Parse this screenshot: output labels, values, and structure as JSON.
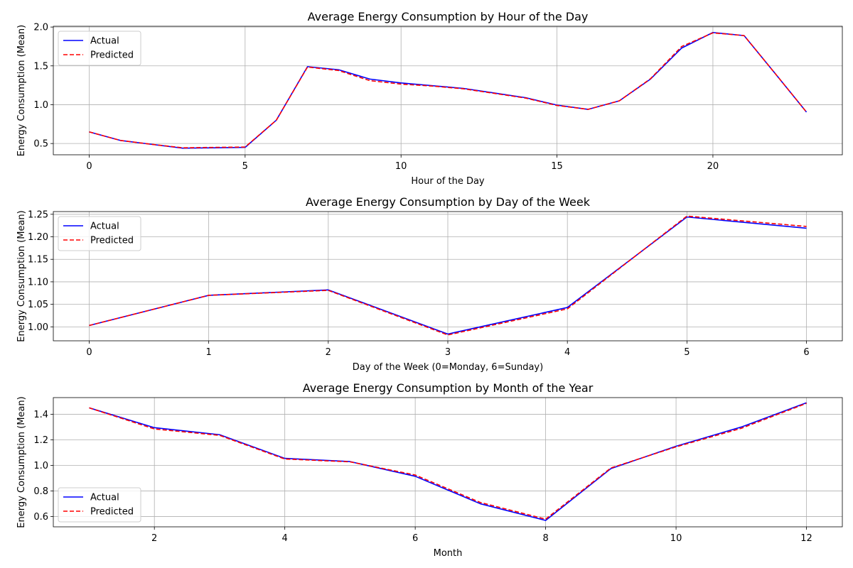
{
  "chart_data": [
    {
      "type": "line",
      "title": "Average Energy Consumption by Hour of the Day",
      "xlabel": "Hour of the Day",
      "ylabel": "Energy Consumption (Mean)",
      "xlim": [
        -1.15,
        24.15
      ],
      "ylim": [
        0.355,
        2.01
      ],
      "xticks": [
        0,
        5,
        10,
        15,
        20
      ],
      "xtick_labels": [
        "0",
        "5",
        "10",
        "15",
        "20"
      ],
      "yticks": [
        0.5,
        1.0,
        1.5,
        2.0
      ],
      "ytick_labels": [
        "0.5",
        "1.0",
        "1.5",
        "2.0"
      ],
      "grid": true,
      "legend_position": "upper-left",
      "x": [
        0,
        1,
        2,
        3,
        4,
        5,
        6,
        7,
        8,
        9,
        10,
        11,
        12,
        13,
        14,
        15,
        16,
        17,
        18,
        19,
        20,
        21,
        22,
        23
      ],
      "series": [
        {
          "name": "Actual",
          "color": "#0000ff",
          "style": "solid",
          "values": [
            0.65,
            0.54,
            0.49,
            0.44,
            0.445,
            0.45,
            0.8,
            1.49,
            1.45,
            1.33,
            1.28,
            1.245,
            1.21,
            1.15,
            1.09,
            0.995,
            0.94,
            1.05,
            1.33,
            1.73,
            1.93,
            1.89,
            1.4,
            0.905
          ]
        },
        {
          "name": "Predicted",
          "color": "#ff0000",
          "style": "dashed",
          "values": [
            0.65,
            0.54,
            0.49,
            0.445,
            0.45,
            0.455,
            0.8,
            1.485,
            1.44,
            1.31,
            1.265,
            1.24,
            1.205,
            1.145,
            1.085,
            0.99,
            0.94,
            1.05,
            1.335,
            1.75,
            1.925,
            1.89,
            1.4,
            0.905
          ]
        }
      ]
    },
    {
      "type": "line",
      "title": "Average Energy Consumption by Day of the Week",
      "xlabel": "Day of the Week (0=Monday, 6=Sunday)",
      "ylabel": "Energy Consumption (Mean)",
      "xlim": [
        -0.3,
        6.3
      ],
      "ylim": [
        0.969,
        1.256
      ],
      "xticks": [
        0,
        1,
        2,
        3,
        4,
        5,
        6
      ],
      "xtick_labels": [
        "0",
        "1",
        "2",
        "3",
        "4",
        "5",
        "6"
      ],
      "yticks": [
        1.0,
        1.05,
        1.1,
        1.15,
        1.2,
        1.25
      ],
      "ytick_labels": [
        "1.00",
        "1.05",
        "1.10",
        "1.15",
        "1.20",
        "1.25"
      ],
      "grid": true,
      "legend_position": "upper-left",
      "x": [
        0,
        1,
        2,
        3,
        4,
        5,
        6
      ],
      "series": [
        {
          "name": "Actual",
          "color": "#0000ff",
          "style": "solid",
          "values": [
            1.003,
            1.07,
            1.082,
            0.984,
            1.043,
            1.244,
            1.219
          ]
        },
        {
          "name": "Predicted",
          "color": "#ff0000",
          "style": "dashed",
          "values": [
            1.003,
            1.07,
            1.081,
            0.982,
            1.04,
            1.246,
            1.223
          ]
        }
      ]
    },
    {
      "type": "line",
      "title": "Average Energy Consumption by Month of the Year",
      "xlabel": "Month",
      "ylabel": "Energy Consumption (Mean)",
      "xlim": [
        0.45,
        12.55
      ],
      "ylim": [
        0.52,
        1.53
      ],
      "xticks": [
        2,
        4,
        6,
        8,
        10,
        12
      ],
      "xtick_labels": [
        "2",
        "4",
        "6",
        "8",
        "10",
        "12"
      ],
      "yticks": [
        0.6,
        0.8,
        1.0,
        1.2,
        1.4
      ],
      "ytick_labels": [
        "0.6",
        "0.8",
        "1.0",
        "1.2",
        "1.4"
      ],
      "grid": true,
      "legend_position": "lower-left",
      "x": [
        1,
        2,
        3,
        4,
        5,
        6,
        7,
        8,
        9,
        10,
        11,
        12
      ],
      "series": [
        {
          "name": "Actual",
          "color": "#0000ff",
          "style": "solid",
          "values": [
            1.45,
            1.295,
            1.24,
            1.055,
            1.03,
            0.915,
            0.7,
            0.57,
            0.975,
            1.15,
            1.3,
            1.49
          ]
        },
        {
          "name": "Predicted",
          "color": "#ff0000",
          "style": "dashed",
          "values": [
            1.45,
            1.285,
            1.235,
            1.05,
            1.028,
            0.925,
            0.71,
            0.58,
            0.98,
            1.145,
            1.29,
            1.485
          ]
        }
      ]
    }
  ]
}
